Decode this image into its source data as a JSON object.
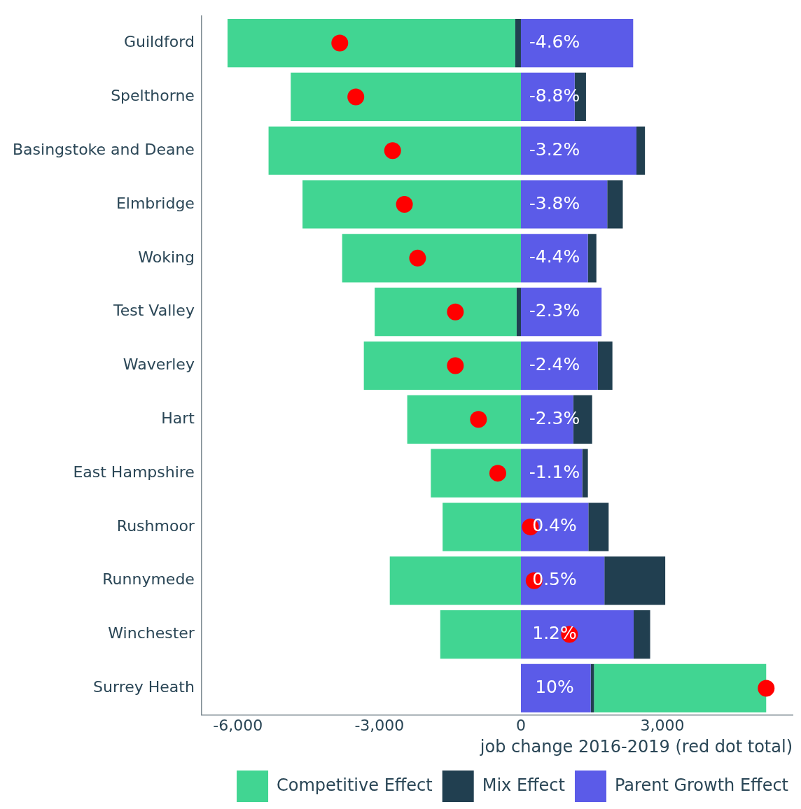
{
  "chart_data": {
    "type": "bar",
    "orientation": "horizontal",
    "stacked": true,
    "xlabel": "job change 2016-2019 (red dot total)",
    "categories": [
      "Guildford",
      "Spelthorne",
      "Basingstoke and Deane",
      "Elmbridge",
      "Woking",
      "Test Valley",
      "Waverley",
      "Hart",
      "East Hampshire",
      "Rushmoor",
      "Runnymede",
      "Winchester",
      "Surrey Heath"
    ],
    "series": [
      {
        "name": "Parent Growth Effect",
        "color": "#5b5be8",
        "values": [
          2380,
          1140,
          2450,
          1830,
          1420,
          1710,
          1630,
          1110,
          1300,
          1430,
          1770,
          2390,
          1480
        ]
      },
      {
        "name": "Mix Effect",
        "color": "#213f50",
        "values": [
          -120,
          240,
          180,
          330,
          180,
          -90,
          310,
          400,
          120,
          430,
          1290,
          350,
          70
        ]
      },
      {
        "name": "Competitive Effect",
        "color": "#41d592",
        "values": [
          -6100,
          -4880,
          -5350,
          -4630,
          -3790,
          -3010,
          -3330,
          -2410,
          -1910,
          -1660,
          -2780,
          -1710,
          3650
        ]
      },
      {
        "type": "scatter",
        "color": "#ff0000",
        "marker": "circle",
        "values": [
          -3840,
          -3500,
          -2720,
          -2470,
          -2190,
          -1390,
          -1390,
          -900,
          -490,
          200,
          280,
          1030,
          5200
        ]
      }
    ],
    "xlim": [
      -6770,
      5760
    ],
    "xticks": [
      {
        "value": -6000,
        "label": "-6,000"
      },
      {
        "value": -3000,
        "label": "-3,000"
      },
      0,
      {
        "value": 3000,
        "label": "3,000"
      }
    ],
    "legend": "bottom",
    "annotations": [
      {
        "text": "-4.6%",
        "y": "Guildford"
      },
      {
        "text": "-8.8%",
        "y": "Spelthorne"
      },
      {
        "text": "-3.2%",
        "y": "Basingstoke and Deane"
      },
      {
        "text": "-3.8%",
        "y": "Elmbridge"
      },
      {
        "text": "-4.4%",
        "y": "Woking"
      },
      {
        "text": "-2.3%",
        "y": "Test Valley"
      },
      {
        "text": "-2.4%",
        "y": "Waverley"
      },
      {
        "text": "-2.3%",
        "y": "Hart"
      },
      {
        "text": "-1.1%",
        "y": "East Hampshire"
      },
      {
        "text": "0.4%",
        "y": "Rushmoor"
      },
      {
        "text": "0.5%",
        "y": "Runnymede"
      },
      {
        "text": "1.2%",
        "y": "Winchester"
      },
      {
        "text": "10%",
        "y": "Surrey Heath"
      }
    ]
  }
}
